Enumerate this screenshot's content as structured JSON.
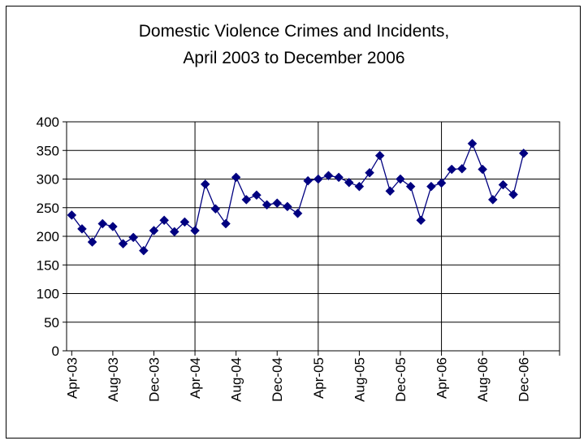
{
  "chart_data": {
    "type": "line",
    "title_lines": [
      "Domestic Violence Crimes and Incidents,",
      "April 2003 to December 2006"
    ],
    "xlabel": "",
    "ylabel": "",
    "ylim": [
      0,
      400
    ],
    "yticks": [
      0,
      50,
      100,
      150,
      200,
      250,
      300,
      350,
      400
    ],
    "x_tick_labels": [
      "Apr-03",
      "Aug-03",
      "Dec-03",
      "Apr-04",
      "Aug-04",
      "Dec-04",
      "Apr-05",
      "Aug-05",
      "Dec-05",
      "Apr-06",
      "Aug-06",
      "Dec-06"
    ],
    "vertical_gridlines_at": [
      "Apr-04",
      "Apr-05",
      "Apr-06"
    ],
    "horizontal_grid": true,
    "legend": "none",
    "series_color": "#000080",
    "series": [
      {
        "x": [
          "Apr-03",
          "May-03",
          "Jun-03",
          "Jul-03",
          "Aug-03",
          "Sep-03",
          "Oct-03",
          "Nov-03",
          "Dec-03",
          "Jan-04",
          "Feb-04",
          "Mar-04",
          "Apr-04",
          "May-04",
          "Jun-04",
          "Jul-04",
          "Aug-04",
          "Sep-04",
          "Oct-04",
          "Nov-04",
          "Dec-04",
          "Jan-05",
          "Feb-05",
          "Mar-05",
          "Apr-05",
          "May-05",
          "Jun-05",
          "Jul-05",
          "Aug-05",
          "Sep-05",
          "Oct-05",
          "Nov-05",
          "Dec-05",
          "Jan-06",
          "Feb-06",
          "Mar-06",
          "Apr-06",
          "May-06",
          "Jun-06",
          "Jul-06",
          "Aug-06",
          "Sep-06",
          "Oct-06",
          "Nov-06",
          "Dec-06"
        ],
        "values": [
          237,
          213,
          190,
          222,
          217,
          187,
          198,
          175,
          210,
          228,
          208,
          225,
          210,
          291,
          248,
          222,
          303,
          264,
          272,
          255,
          258,
          252,
          240,
          297,
          300,
          306,
          303,
          294,
          287,
          311,
          341,
          279,
          300,
          287,
          228,
          287,
          293,
          317,
          318,
          362,
          317,
          264,
          290,
          273,
          345
        ]
      }
    ]
  }
}
